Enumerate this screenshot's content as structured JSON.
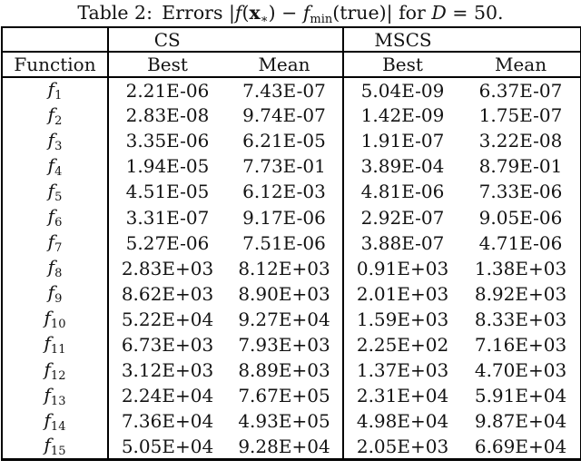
{
  "title": {
    "segments": [
      {
        "text": "Table 2: Errors ",
        "style": "roman"
      },
      {
        "text": "|",
        "style": "roman"
      },
      {
        "text": "f",
        "style": "italic"
      },
      {
        "text": "(",
        "style": "roman"
      },
      {
        "text": "x",
        "style": "bold"
      },
      {
        "text": "∗",
        "style": "sub"
      },
      {
        "text": ")",
        "style": "roman"
      },
      {
        "text": " − ",
        "style": "roman"
      },
      {
        "text": "f",
        "style": "italic"
      },
      {
        "text": "min",
        "style": "sub"
      },
      {
        "text": "(true)|",
        "style": "roman"
      },
      {
        "text": " for ",
        "style": "roman"
      },
      {
        "text": "D",
        "style": "italic"
      },
      {
        "text": " = 50.",
        "style": "roman"
      }
    ]
  },
  "table": {
    "group_headers": {
      "corner": "",
      "cs": "CS",
      "mscs": "MSCS"
    },
    "column_headers": [
      "Function",
      "Best",
      "Mean",
      "Best",
      "Mean"
    ],
    "rows": [
      {
        "fn": "f",
        "idx": "1",
        "cs_best": "2.21E-06",
        "cs_mean": "7.43E-07",
        "mscs_best": "5.04E-09",
        "mscs_mean": "6.37E-07"
      },
      {
        "fn": "f",
        "idx": "2",
        "cs_best": "2.83E-08",
        "cs_mean": "9.74E-07",
        "mscs_best": "1.42E-09",
        "mscs_mean": "1.75E-07"
      },
      {
        "fn": "f",
        "idx": "3",
        "cs_best": "3.35E-06",
        "cs_mean": "6.21E-05",
        "mscs_best": "1.91E-07",
        "mscs_mean": "3.22E-08"
      },
      {
        "fn": "f",
        "idx": "4",
        "cs_best": "1.94E-05",
        "cs_mean": "7.73E-01",
        "mscs_best": "3.89E-04",
        "mscs_mean": "8.79E-01"
      },
      {
        "fn": "f",
        "idx": "5",
        "cs_best": "4.51E-05",
        "cs_mean": "6.12E-03",
        "mscs_best": "4.81E-06",
        "mscs_mean": "7.33E-06"
      },
      {
        "fn": "f",
        "idx": "6",
        "cs_best": "3.31E-07",
        "cs_mean": "9.17E-06",
        "mscs_best": "2.92E-07",
        "mscs_mean": "9.05E-06"
      },
      {
        "fn": "f",
        "idx": "7",
        "cs_best": "5.27E-06",
        "cs_mean": "7.51E-06",
        "mscs_best": "3.88E-07",
        "mscs_mean": "4.71E-06"
      },
      {
        "fn": "f",
        "idx": "8",
        "cs_best": "2.83E+03",
        "cs_mean": "8.12E+03",
        "mscs_best": "0.91E+03",
        "mscs_mean": "1.38E+03"
      },
      {
        "fn": "f",
        "idx": "9",
        "cs_best": "8.62E+03",
        "cs_mean": "8.90E+03",
        "mscs_best": "2.01E+03",
        "mscs_mean": "8.92E+03"
      },
      {
        "fn": "f",
        "idx": "10",
        "cs_best": "5.22E+04",
        "cs_mean": "9.27E+04",
        "mscs_best": "1.59E+03",
        "mscs_mean": "8.33E+03"
      },
      {
        "fn": "f",
        "idx": "11",
        "cs_best": "6.73E+03",
        "cs_mean": "7.93E+03",
        "mscs_best": "2.25E+02",
        "mscs_mean": "7.16E+03"
      },
      {
        "fn": "f",
        "idx": "12",
        "cs_best": "3.12E+03",
        "cs_mean": "8.89E+03",
        "mscs_best": "1.37E+03",
        "mscs_mean": "4.70E+03"
      },
      {
        "fn": "f",
        "idx": "13",
        "cs_best": "2.24E+04",
        "cs_mean": "7.67E+05",
        "mscs_best": "2.31E+04",
        "mscs_mean": "5.91E+04"
      },
      {
        "fn": "f",
        "idx": "14",
        "cs_best": "7.36E+04",
        "cs_mean": "4.93E+05",
        "mscs_best": "4.98E+04",
        "mscs_mean": "9.87E+04"
      },
      {
        "fn": "f",
        "idx": "15",
        "cs_best": "5.05E+04",
        "cs_mean": "9.28E+04",
        "mscs_best": "2.05E+03",
        "mscs_mean": "6.69E+04"
      }
    ]
  }
}
